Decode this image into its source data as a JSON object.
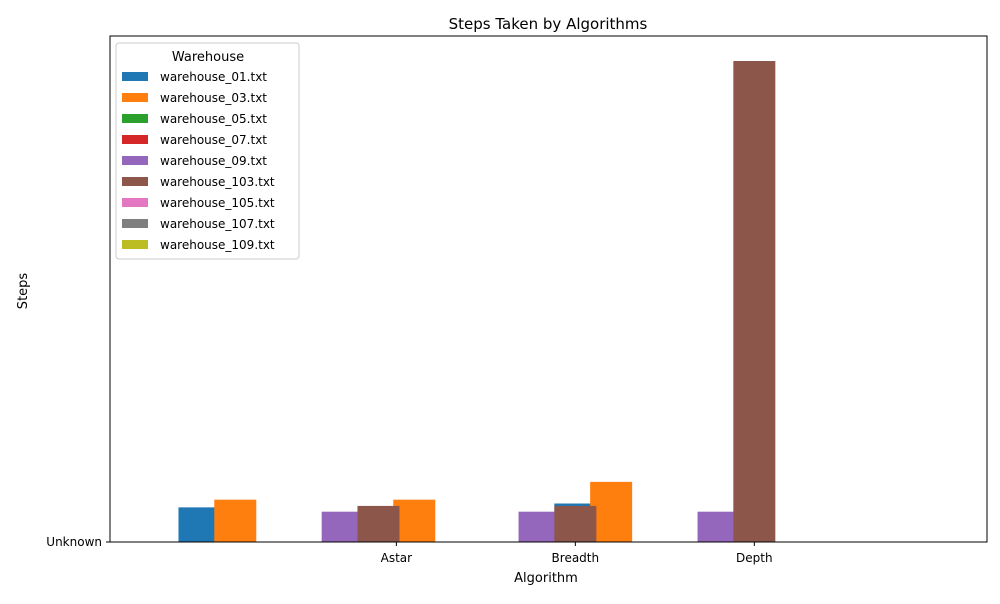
{
  "chart_data": {
    "type": "bar",
    "title": "Steps Taken by Algorithms",
    "xlabel": "Algorithm",
    "ylabel": "Steps",
    "y_tick_labels": [
      "Unknown"
    ],
    "x_tick_labels": [
      "Astar",
      "Breadth",
      "Depth"
    ],
    "legend": {
      "title": "Warehouse",
      "placement": "top-left"
    },
    "grid": false,
    "ylim": [
      0,
      1000
    ],
    "series": [
      {
        "name": "warehouse_01.txt",
        "color": "#1f77b4",
        "values": [
          {
            "x": -0.1,
            "y": 72
          },
          {
            "x": 2.0,
            "y": 80
          }
        ]
      },
      {
        "name": "warehouse_03.txt",
        "color": "#ff7f0e",
        "values": [
          {
            "x": 0.1,
            "y": 88
          },
          {
            "x": 1.1,
            "y": 88
          },
          {
            "x": 2.2,
            "y": 125
          }
        ]
      },
      {
        "name": "warehouse_05.txt",
        "color": "#2ca02c",
        "values": []
      },
      {
        "name": "warehouse_07.txt",
        "color": "#d62728",
        "values": []
      },
      {
        "name": "warehouse_09.txt",
        "color": "#9467bd",
        "values": [
          {
            "x": 0.7,
            "y": 63
          },
          {
            "x": 1.8,
            "y": 63
          },
          {
            "x": 2.8,
            "y": 63
          }
        ]
      },
      {
        "name": "warehouse_103.txt",
        "color": "#8c564b",
        "values": [
          {
            "x": 0.9,
            "y": 75
          },
          {
            "x": 2.0,
            "y": 75
          },
          {
            "x": 3.0,
            "y": 1000
          }
        ]
      },
      {
        "name": "warehouse_105.txt",
        "color": "#e377c2",
        "values": []
      },
      {
        "name": "warehouse_107.txt",
        "color": "#7f7f7f",
        "values": []
      },
      {
        "name": "warehouse_109.txt",
        "color": "#bcbd22",
        "values": []
      }
    ]
  }
}
